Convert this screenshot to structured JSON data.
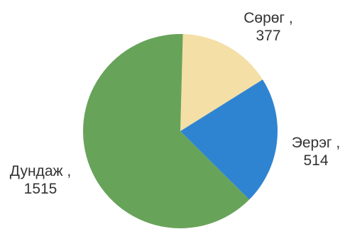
{
  "chart_data": {
    "type": "pie",
    "title": "",
    "slices": [
      {
        "label": "Сөрөг",
        "value": 377,
        "value_label": "377",
        "color": "#f4dfa6"
      },
      {
        "label": "Эерэг",
        "value": 514,
        "value_label": "514",
        "color": "#2f84d2"
      },
      {
        "label": "Дундаж",
        "value": 1515,
        "value_label": "1515",
        "color": "#68a35a"
      }
    ],
    "legend": "none",
    "data_labels": "outside"
  }
}
